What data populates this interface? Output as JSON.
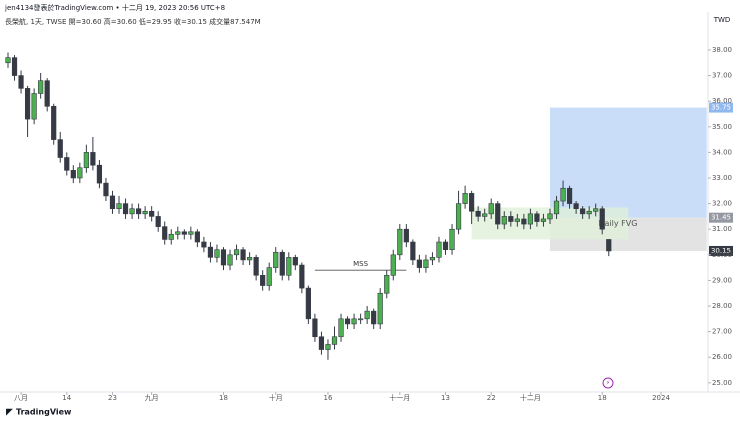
{
  "header": {
    "title": "jen4134發表於TradingView.com • 十二月 19, 2023 20:56 UTC+8",
    "legend": "長榮航, 1天, TWSE  開=30.60  高=30.60  低=29.95  收=30.15  成交量87.547M",
    "footer": "TradingView",
    "currency": "TWD"
  },
  "chart_data": {
    "type": "candlestick",
    "open": [
      37.5,
      37.7,
      37.0,
      36.5,
      35.3,
      36.3,
      36.8,
      35.8,
      34.5,
      33.8,
      33.3,
      33.0,
      33.4,
      34.0,
      33.5,
      32.8,
      32.3,
      31.8,
      32.0,
      31.6,
      31.8,
      31.6,
      31.7,
      31.5,
      31.1,
      30.6,
      30.8,
      30.9,
      30.8,
      30.9,
      30.5,
      30.3,
      29.9,
      30.2,
      29.6,
      30.0,
      30.2,
      29.8,
      29.9,
      29.2,
      28.8,
      29.5,
      30.1,
      29.2,
      29.9,
      29.6,
      28.7,
      27.5,
      26.8,
      26.3,
      26.5,
      26.8,
      27.5,
      27.3,
      27.5,
      27.5,
      27.8,
      27.3,
      28.5,
      29.2,
      30.0,
      31.0,
      30.5,
      29.8,
      29.5,
      29.8,
      29.9,
      30.5,
      30.2,
      31.0,
      32.0,
      32.4,
      31.7,
      31.5,
      31.6,
      32.0,
      31.2,
      31.5,
      31.3,
      31.4,
      31.2,
      31.6,
      31.3,
      31.4,
      31.6,
      32.1,
      32.6,
      32.0,
      31.8,
      31.6,
      31.7,
      31.8,
      30.6
    ],
    "high": [
      37.9,
      37.8,
      37.2,
      36.6,
      36.5,
      37.1,
      36.9,
      35.9,
      34.8,
      34.0,
      33.5,
      33.6,
      34.3,
      34.6,
      33.7,
      33.0,
      32.5,
      32.3,
      32.2,
      32.0,
      32.0,
      31.9,
      31.9,
      31.7,
      31.3,
      31.0,
      31.1,
      31.0,
      31.1,
      31.0,
      30.7,
      30.5,
      30.4,
      30.3,
      30.2,
      30.4,
      30.3,
      30.1,
      30.0,
      29.4,
      29.7,
      30.3,
      30.2,
      30.1,
      30.0,
      29.7,
      28.8,
      27.7,
      27.0,
      26.7,
      27.2,
      27.7,
      27.6,
      27.7,
      27.7,
      28.0,
      27.9,
      28.7,
      29.4,
      30.2,
      31.2,
      31.2,
      30.6,
      30.0,
      30.0,
      30.1,
      30.7,
      30.6,
      31.2,
      32.5,
      32.7,
      32.5,
      31.9,
      31.8,
      32.2,
      32.1,
      31.7,
      31.7,
      31.6,
      31.6,
      31.8,
      31.7,
      31.6,
      31.8,
      32.3,
      32.9,
      32.7,
      32.1,
      31.9,
      31.9,
      32.0,
      31.9,
      30.6
    ],
    "low": [
      37.3,
      36.8,
      36.3,
      34.6,
      35.1,
      36.1,
      35.6,
      34.3,
      33.6,
      33.1,
      32.8,
      32.8,
      33.2,
      33.3,
      32.6,
      32.1,
      31.6,
      31.6,
      31.4,
      31.4,
      31.4,
      31.4,
      31.3,
      30.9,
      30.4,
      30.4,
      30.6,
      30.6,
      30.6,
      30.3,
      30.1,
      29.7,
      29.7,
      29.4,
      29.4,
      29.8,
      29.6,
      29.6,
      29.0,
      28.6,
      28.6,
      29.3,
      29.0,
      29.0,
      29.4,
      28.5,
      27.3,
      26.6,
      26.1,
      25.9,
      26.3,
      26.6,
      27.1,
      27.1,
      27.3,
      27.3,
      27.1,
      27.1,
      28.3,
      29.0,
      29.8,
      30.3,
      29.6,
      29.3,
      29.3,
      29.6,
      29.7,
      30.0,
      30.0,
      30.8,
      31.8,
      31.2,
      31.3,
      31.3,
      31.4,
      31.0,
      31.0,
      31.1,
      31.1,
      31.0,
      31.0,
      31.1,
      31.1,
      31.2,
      31.4,
      31.9,
      31.8,
      31.6,
      31.4,
      31.4,
      31.5,
      30.8,
      29.95
    ],
    "close": [
      37.7,
      37.0,
      36.5,
      35.3,
      36.3,
      36.8,
      35.8,
      34.5,
      33.8,
      33.3,
      33.0,
      33.4,
      34.0,
      33.5,
      32.8,
      32.3,
      31.8,
      32.0,
      31.6,
      31.8,
      31.6,
      31.7,
      31.5,
      31.1,
      30.6,
      30.8,
      30.9,
      30.8,
      30.9,
      30.5,
      30.3,
      29.9,
      30.2,
      29.6,
      30.0,
      30.2,
      29.8,
      29.9,
      29.2,
      28.8,
      29.5,
      30.1,
      29.2,
      29.9,
      29.6,
      28.7,
      27.5,
      26.8,
      26.3,
      26.5,
      26.8,
      27.5,
      27.3,
      27.5,
      27.5,
      27.8,
      27.3,
      28.5,
      29.2,
      30.0,
      31.0,
      30.5,
      29.8,
      29.5,
      29.8,
      29.9,
      30.5,
      30.2,
      31.0,
      32.0,
      32.4,
      31.7,
      31.5,
      31.6,
      32.0,
      31.2,
      31.5,
      31.3,
      31.4,
      31.2,
      31.6,
      31.3,
      31.4,
      31.6,
      32.1,
      32.6,
      32.0,
      31.8,
      31.6,
      31.7,
      31.8,
      31.0,
      30.15
    ],
    "up_color": "#4caf50",
    "down_color": "#363a45",
    "ylim": [
      24.4,
      38.6
    ],
    "yticks": [
      {
        "value": 25,
        "label": "25.00"
      },
      {
        "value": 26,
        "label": "26.00"
      },
      {
        "value": 27,
        "label": "27.00"
      },
      {
        "value": 28,
        "label": "28.00"
      },
      {
        "value": 29,
        "label": "29.00"
      },
      {
        "value": 30,
        "label": "30.00"
      },
      {
        "value": 31,
        "label": "31.00"
      },
      {
        "value": 32,
        "label": "32.00"
      },
      {
        "value": 33,
        "label": "33.00"
      },
      {
        "value": 34,
        "label": "34.00"
      },
      {
        "value": 35,
        "label": "35.00"
      },
      {
        "value": 36,
        "label": "36.00"
      },
      {
        "value": 37,
        "label": "37.00"
      },
      {
        "value": 38,
        "label": "38.00"
      }
    ],
    "xlim": [
      -1,
      107
    ],
    "xticks": [
      {
        "value": 2,
        "label": "八月"
      },
      {
        "value": 9,
        "label": "14"
      },
      {
        "value": 16,
        "label": "23"
      },
      {
        "value": 22,
        "label": "九月"
      },
      {
        "value": 33,
        "label": "18"
      },
      {
        "value": 41,
        "label": "十月"
      },
      {
        "value": 49,
        "label": "16"
      },
      {
        "value": 60,
        "label": "十一月"
      },
      {
        "value": 67,
        "label": "13"
      },
      {
        "value": 74,
        "label": "22"
      },
      {
        "value": 80,
        "label": "十二月"
      },
      {
        "value": 91,
        "label": "18"
      },
      {
        "value": 100,
        "label": "2024"
      }
    ],
    "zones": [
      {
        "x": [
          83,
          107
        ],
        "y": [
          35.75,
          31.45
        ],
        "color": "#bbd5f7"
      },
      {
        "x": [
          83,
          107
        ],
        "y": [
          31.45,
          30.15
        ],
        "color": "#dcdcdc"
      },
      {
        "label": "Daily FVG",
        "x": [
          71,
          95
        ],
        "y": [
          31.85,
          30.6
        ],
        "color": "#dff0d8"
      }
    ],
    "mss": {
      "label": "MSS",
      "x": [
        47,
        61
      ],
      "y": 29.4
    }
  }
}
